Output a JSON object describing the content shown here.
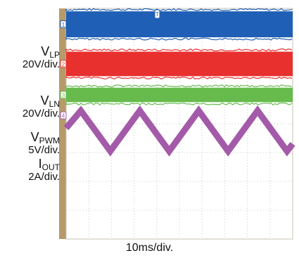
{
  "chart_data": {
    "type": "line",
    "timebase": "10ms/div.",
    "x_divisions": 10,
    "channels": [
      {
        "name": "V",
        "sub": "LP",
        "scale": "20V/div.",
        "marker": "1",
        "color": "#1f5fb5",
        "shape": "switching",
        "band_top_div": 0.1,
        "band_bottom_div": 1.0
      },
      {
        "name": "V",
        "sub": "LN",
        "scale": "20V/div.",
        "marker": "2",
        "color": "#e8302f",
        "shape": "switching",
        "band_top_div": 1.5,
        "band_bottom_div": 2.35
      },
      {
        "name": "V",
        "sub": "PWM",
        "scale": "5V/div.",
        "marker": "3",
        "color": "#66bb4c",
        "shape": "switching",
        "band_top_div": 2.75,
        "band_bottom_div": 3.25
      },
      {
        "name": "I",
        "sub": "OUT",
        "scale": "2A/div.",
        "marker": "4",
        "color": "#a35aa8",
        "shape": "triangle",
        "x_div": [
          0,
          0.65,
          1.95,
          3.25,
          4.55,
          5.85,
          7.15,
          8.45,
          9.75,
          10
        ],
        "y_div": [
          4.15,
          3.55,
          4.95,
          3.55,
          4.95,
          3.55,
          4.95,
          3.55,
          4.95,
          4.7
        ]
      }
    ],
    "trigger_marker": "T",
    "grid": true
  }
}
